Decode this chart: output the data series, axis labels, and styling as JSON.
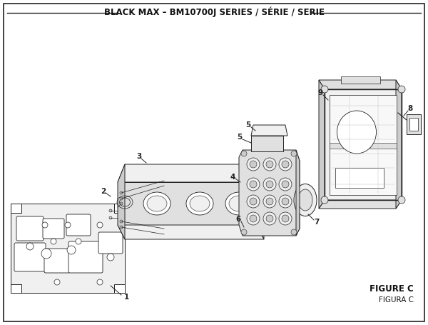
{
  "title": "BLACK MAX – BM10700J SERIES / SÉRIE / SERIE",
  "figure_label": "FIGURE C",
  "figura_label": "FIGURA C",
  "bg_color": "#ffffff",
  "border_color": "#333333",
  "line_color": "#222222",
  "title_fontsize": 8.5,
  "label_fontsize": 7.5,
  "figure_label_fontsize": 8.5
}
